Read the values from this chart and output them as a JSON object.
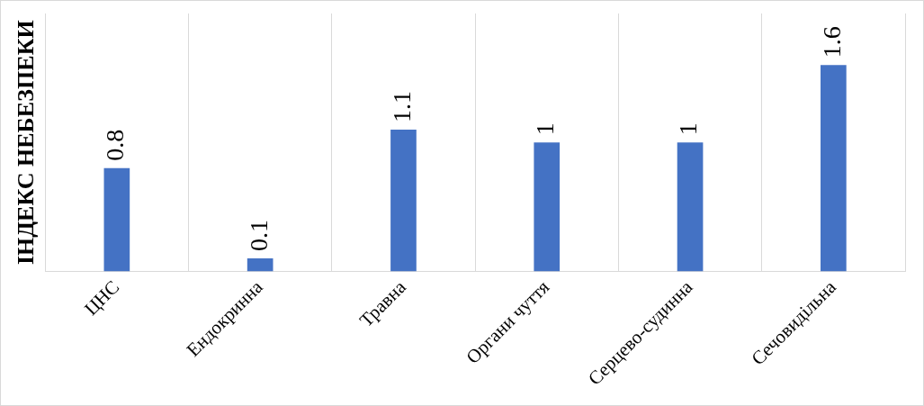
{
  "chart_data": {
    "type": "bar",
    "ylabel": "ІНДЕКС НЕБЕЗПЕКИ",
    "categories": [
      "ЦНС",
      "Ендокринна",
      "Травна",
      "Органи чуття",
      "Серцево-судинна",
      "Сечовидільна"
    ],
    "values": [
      0.8,
      0.1,
      1.1,
      1,
      1,
      1.6
    ],
    "color": "#4472c4",
    "ylim": [
      0,
      2
    ],
    "tick_labels": "x",
    "grid": "x",
    "data_labels": true,
    "legend": false
  }
}
